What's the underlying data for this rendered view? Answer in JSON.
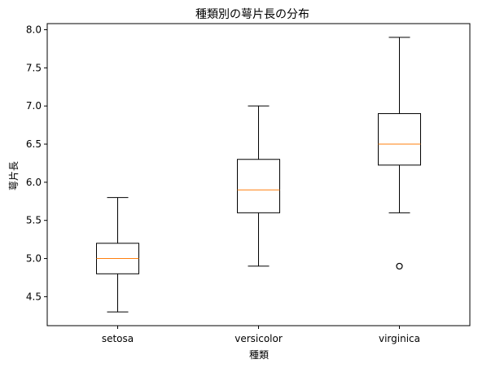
{
  "chart_data": {
    "type": "box",
    "title": "種類別の萼片長の分布",
    "xlabel": "種類",
    "ylabel": "萼片長",
    "categories": [
      "setosa",
      "versicolor",
      "virginica"
    ],
    "ylim": [
      4.12,
      8.08
    ],
    "yticks": [
      4.5,
      5.0,
      5.5,
      6.0,
      6.5,
      7.0,
      7.5,
      8.0
    ],
    "ytick_labels": [
      "4.5",
      "5.0",
      "5.5",
      "6.0",
      "6.5",
      "7.0",
      "7.5",
      "8.0"
    ],
    "grid": false,
    "series": [
      {
        "category": "setosa",
        "whisker_low": 4.3,
        "q1": 4.8,
        "median": 5.0,
        "q3": 5.2,
        "whisker_high": 5.8,
        "outliers": []
      },
      {
        "category": "versicolor",
        "whisker_low": 4.9,
        "q1": 5.6,
        "median": 5.9,
        "q3": 6.3,
        "whisker_high": 7.0,
        "outliers": []
      },
      {
        "category": "virginica",
        "whisker_low": 5.6,
        "q1": 6.225,
        "median": 6.5,
        "q3": 6.9,
        "whisker_high": 7.9,
        "outliers": [
          4.9
        ]
      }
    ],
    "colors": {
      "box": "#000000",
      "median": "#ff7f0e",
      "outlier": "#000000"
    }
  }
}
